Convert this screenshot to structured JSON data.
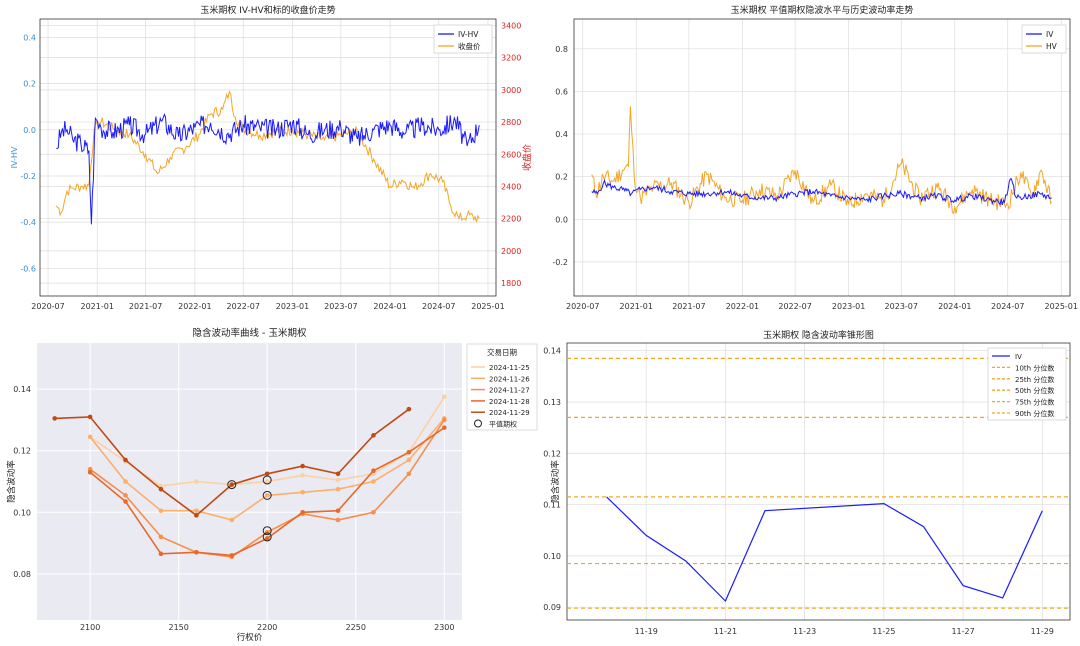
{
  "colors": {
    "iv_blue": "#1a1aff",
    "price_orange": "#f5a623",
    "right_axis_red": "#e02020",
    "left_axis_blue": "#3a8fd0",
    "grid": "#dcdcdc",
    "quantile_orange": "#f5a623",
    "smile_palette": [
      "#fdd0a2",
      "#fdae6b",
      "#f98d4a",
      "#e8682b",
      "#c04a13"
    ]
  },
  "chart_data": [
    {
      "id": "ivhv",
      "type": "line",
      "title": "玉米期权 IV-HV和标的收盘价走势",
      "ylabel_left": "IV-HV",
      "ylabel_right": "收盘价",
      "ylim_left": [
        -0.72,
        0.48
      ],
      "ylim_right": [
        1720,
        3440
      ],
      "yticks_left": [
        -0.6,
        -0.4,
        -0.2,
        0.0,
        0.2,
        0.4
      ],
      "ytick_labels_left": [
        "-0.6",
        "-0.4",
        "-0.2",
        "0.0",
        "0.2",
        "0.4"
      ],
      "yticks_right": [
        1800,
        2000,
        2200,
        2400,
        2600,
        2800,
        3000,
        3200,
        3400
      ],
      "ytick_labels_right": [
        "1800",
        "2000",
        "2200",
        "2400",
        "2600",
        "2800",
        "3000",
        "3200",
        "3400"
      ],
      "xlim": [
        "2020-06-01",
        "2025-01-31"
      ],
      "xtick_labels": [
        "2020-07",
        "2021-01",
        "2021-07",
        "2022-01",
        "2022-07",
        "2023-01",
        "2023-07",
        "2024-01",
        "2024-07",
        "2025-01"
      ],
      "legend": {
        "position": "top-right",
        "entries": [
          "IV-HV",
          "收盘价"
        ]
      },
      "grid": true,
      "series": [
        {
          "name": "IV-HV",
          "axis": "left",
          "x": [
            "2020-08-01",
            "2020-08-20",
            "2020-09-10",
            "2020-10-01",
            "2020-11-01",
            "2020-12-01",
            "2020-12-10",
            "2020-12-25",
            "2021-01-15",
            "2021-03-01",
            "2021-05-01",
            "2021-07-01",
            "2021-09-01",
            "2021-11-01",
            "2022-01-01",
            "2022-03-01",
            "2022-05-01",
            "2022-07-01",
            "2022-09-01",
            "2022-11-01",
            "2023-01-01",
            "2023-03-01",
            "2023-05-01",
            "2023-07-01",
            "2023-09-01",
            "2023-11-01",
            "2024-01-01",
            "2024-03-01",
            "2024-05-01",
            "2024-07-01",
            "2024-09-01",
            "2024-10-15",
            "2024-11-29"
          ],
          "values": [
            -0.08,
            -0.01,
            0.0,
            -0.04,
            -0.06,
            -0.09,
            -0.41,
            0.05,
            0.01,
            -0.01,
            0.02,
            -0.02,
            0.04,
            -0.03,
            0.01,
            0.03,
            -0.02,
            0.02,
            0.01,
            0.0,
            0.03,
            -0.02,
            0.0,
            0.01,
            -0.04,
            0.0,
            0.02,
            -0.01,
            0.02,
            0.0,
            0.04,
            -0.07,
            0.02
          ]
        },
        {
          "name": "收盘价",
          "axis": "right",
          "x": [
            "2020-08-01",
            "2020-08-20",
            "2020-09-10",
            "2020-10-01",
            "2020-11-01",
            "2020-12-01",
            "2020-12-20",
            "2021-01-15",
            "2021-03-01",
            "2021-05-01",
            "2021-07-01",
            "2021-08-15",
            "2021-10-01",
            "2021-12-01",
            "2022-01-15",
            "2022-03-01",
            "2022-04-15",
            "2022-05-10",
            "2022-06-01",
            "2022-07-01",
            "2022-09-01",
            "2022-11-01",
            "2023-01-01",
            "2023-03-01",
            "2023-05-01",
            "2023-07-01",
            "2023-09-01",
            "2023-11-01",
            "2024-01-01",
            "2024-02-15",
            "2024-04-01",
            "2024-06-01",
            "2024-07-15",
            "2024-08-15",
            "2024-09-15",
            "2024-10-15",
            "2024-11-29"
          ],
          "values": [
            2280,
            2240,
            2370,
            2390,
            2400,
            2410,
            2750,
            2800,
            2760,
            2720,
            2600,
            2480,
            2580,
            2650,
            2720,
            2850,
            2880,
            2990,
            2830,
            2760,
            2720,
            2740,
            2750,
            2720,
            2690,
            2720,
            2740,
            2570,
            2400,
            2440,
            2390,
            2480,
            2430,
            2280,
            2200,
            2220,
            2200
          ]
        }
      ]
    },
    {
      "id": "ivhvlevel",
      "type": "line",
      "title": "玉米期权 平值期权隐波水平与历史波动率走势",
      "ylim": [
        -0.36,
        0.94
      ],
      "yticks": [
        -0.2,
        0.0,
        0.2,
        0.4,
        0.6,
        0.8
      ],
      "ytick_labels": [
        "-0.2",
        "0.0",
        "0.2",
        "0.4",
        "0.6",
        "0.8"
      ],
      "xlim": [
        "2020-06-01",
        "2025-01-31"
      ],
      "xtick_labels": [
        "2020-07",
        "2021-01",
        "2021-07",
        "2022-01",
        "2022-07",
        "2023-01",
        "2023-07",
        "2024-01",
        "2024-07",
        "2025-01"
      ],
      "legend": {
        "position": "top-right",
        "entries": [
          "IV",
          "HV"
        ]
      },
      "grid": true,
      "series": [
        {
          "name": "IV",
          "x": [
            "2020-08-01",
            "2020-08-20",
            "2020-09-10",
            "2020-10-15",
            "2020-11-15",
            "2020-12-15",
            "2021-01-15",
            "2021-03-01",
            "2021-05-01",
            "2021-07-01",
            "2021-09-01",
            "2021-11-01",
            "2022-01-01",
            "2022-03-01",
            "2022-05-01",
            "2022-07-01",
            "2022-09-01",
            "2022-11-01",
            "2023-01-01",
            "2023-03-01",
            "2023-05-01",
            "2023-07-01",
            "2023-09-01",
            "2023-11-01",
            "2024-01-01",
            "2024-03-01",
            "2024-05-01",
            "2024-06-20",
            "2024-07-10",
            "2024-08-01",
            "2024-09-15",
            "2024-10-20",
            "2024-11-29"
          ],
          "values": [
            0.13,
            0.12,
            0.17,
            0.15,
            0.14,
            0.12,
            0.14,
            0.15,
            0.13,
            0.12,
            0.12,
            0.13,
            0.11,
            0.1,
            0.1,
            0.12,
            0.13,
            0.11,
            0.1,
            0.09,
            0.11,
            0.12,
            0.1,
            0.11,
            0.09,
            0.11,
            0.09,
            0.08,
            0.19,
            0.1,
            0.11,
            0.12,
            0.1
          ]
        },
        {
          "name": "HV",
          "x": [
            "2020-08-01",
            "2020-08-15",
            "2020-09-10",
            "2020-10-15",
            "2020-11-15",
            "2020-12-05",
            "2020-12-12",
            "2020-12-25",
            "2021-01-15",
            "2021-03-01",
            "2021-05-01",
            "2021-07-01",
            "2021-09-01",
            "2021-11-01",
            "2022-01-01",
            "2022-03-01",
            "2022-05-01",
            "2022-07-01",
            "2022-09-01",
            "2022-11-01",
            "2023-01-01",
            "2023-03-01",
            "2023-05-01",
            "2023-07-01",
            "2023-09-01",
            "2023-11-01",
            "2024-01-01",
            "2024-03-01",
            "2024-05-01",
            "2024-07-01",
            "2024-08-15",
            "2024-09-20",
            "2024-10-25",
            "2024-11-29"
          ],
          "values": [
            0.21,
            0.12,
            0.2,
            0.18,
            0.23,
            0.25,
            0.53,
            0.2,
            0.1,
            0.15,
            0.17,
            0.08,
            0.21,
            0.1,
            0.09,
            0.14,
            0.11,
            0.23,
            0.08,
            0.16,
            0.07,
            0.12,
            0.09,
            0.26,
            0.1,
            0.15,
            0.06,
            0.14,
            0.09,
            0.07,
            0.22,
            0.11,
            0.23,
            0.08
          ]
        }
      ]
    },
    {
      "id": "smile",
      "type": "line",
      "title": "隐含波动率曲线 - 玉米期权",
      "xlabel": "行权价",
      "ylabel": "隐含波动率",
      "xlim": [
        2070,
        2310
      ],
      "ylim": [
        0.065,
        0.155
      ],
      "xticks": [
        2100,
        2150,
        2200,
        2250,
        2300
      ],
      "xtick_labels": [
        "2100",
        "2150",
        "2200",
        "2250",
        "2300"
      ],
      "yticks": [
        0.08,
        0.1,
        0.12,
        0.14
      ],
      "ytick_labels": [
        "0.08",
        "0.10",
        "0.12",
        "0.14"
      ],
      "legend": {
        "position": "top-right-outside",
        "title": "交易日期",
        "entries": [
          "2024-11-25",
          "2024-11-26",
          "2024-11-27",
          "2024-11-28",
          "2024-11-29",
          "平值期权"
        ]
      },
      "grid": true,
      "series": [
        {
          "name": "2024-11-25",
          "x": [
            2100,
            2120,
            2140,
            2160,
            2180,
            2200,
            2220,
            2240,
            2260,
            2280,
            2300
          ],
          "values": [
            0.1245,
            0.1165,
            0.1085,
            0.11,
            0.109,
            0.11,
            0.112,
            0.1105,
            0.1125,
            0.1195,
            0.1375
          ]
        },
        {
          "name": "2024-11-26",
          "x": [
            2100,
            2120,
            2140,
            2160,
            2180,
            2200,
            2220,
            2240,
            2260,
            2280,
            2300
          ],
          "values": [
            0.1245,
            0.11,
            0.1005,
            0.1005,
            0.0975,
            0.1055,
            0.1065,
            0.1075,
            0.11,
            0.117,
            0.1305
          ]
        },
        {
          "name": "2024-11-27",
          "x": [
            2100,
            2120,
            2140,
            2160,
            2180,
            2200,
            2220,
            2240,
            2260,
            2280,
            2300
          ],
          "values": [
            0.114,
            0.1055,
            0.092,
            0.087,
            0.0855,
            0.0935,
            0.0995,
            0.0975,
            0.1,
            0.1125,
            0.13
          ]
        },
        {
          "name": "2024-11-28",
          "x": [
            2100,
            2120,
            2140,
            2160,
            2180,
            2200,
            2220,
            2240,
            2260,
            2280,
            2300
          ],
          "values": [
            0.113,
            0.1035,
            0.0865,
            0.087,
            0.086,
            0.0915,
            0.1,
            0.1005,
            0.1135,
            0.1195,
            0.1275
          ]
        },
        {
          "name": "2024-11-29",
          "x": [
            2080,
            2100,
            2120,
            2140,
            2160,
            2180,
            2200,
            2220,
            2240,
            2260,
            2280
          ],
          "values": [
            0.1305,
            0.131,
            0.117,
            0.1075,
            0.099,
            0.109,
            0.1125,
            0.115,
            0.1125,
            0.125,
            0.1335
          ]
        }
      ],
      "atm_points": {
        "name": "平值期权",
        "x": [
          2180,
          2200,
          2200,
          2200,
          2200
        ],
        "values": [
          0.109,
          0.1105,
          0.1055,
          0.094,
          0.092
        ]
      }
    },
    {
      "id": "cone",
      "type": "line",
      "title": "玉米期权 隐含波动率锥形图",
      "ylabel": "隐含波动率",
      "xlim": [
        "2024-11-17",
        "2024-11-29.7"
      ],
      "ylim": [
        0.0875,
        0.1415
      ],
      "yticks": [
        0.09,
        0.1,
        0.11,
        0.12,
        0.13,
        0.14
      ],
      "ytick_labels": [
        "0.09",
        "0.10",
        "0.11",
        "0.12",
        "0.13",
        "0.14"
      ],
      "xtick_labels": [
        "11-19",
        "11-21",
        "11-23",
        "11-25",
        "11-27",
        "11-29"
      ],
      "legend": {
        "position": "top-right",
        "entries": [
          "IV",
          "10th 分位数",
          "25th 分位数",
          "50th 分位数",
          "75th 分位数",
          "90th 分位数"
        ]
      },
      "grid": true,
      "series": [
        {
          "name": "IV",
          "x": [
            "2024-11-18",
            "2024-11-19",
            "2024-11-20",
            "2024-11-21",
            "2024-11-22",
            "2024-11-25",
            "2024-11-26",
            "2024-11-27",
            "2024-11-28",
            "2024-11-29"
          ],
          "values": [
            0.1115,
            0.104,
            0.099,
            0.0912,
            0.1088,
            0.1102,
            0.1057,
            0.0942,
            0.0918,
            0.1088
          ]
        }
      ],
      "quantiles": [
        {
          "name": "10th 分位数",
          "value": 0.0898
        },
        {
          "name": "25th 分位数",
          "value": 0.0985
        },
        {
          "name": "50th 分位数",
          "value": 0.1115
        },
        {
          "name": "75th 分位数",
          "value": 0.127
        },
        {
          "name": "90th 分位数",
          "value": 0.1385
        }
      ]
    }
  ]
}
